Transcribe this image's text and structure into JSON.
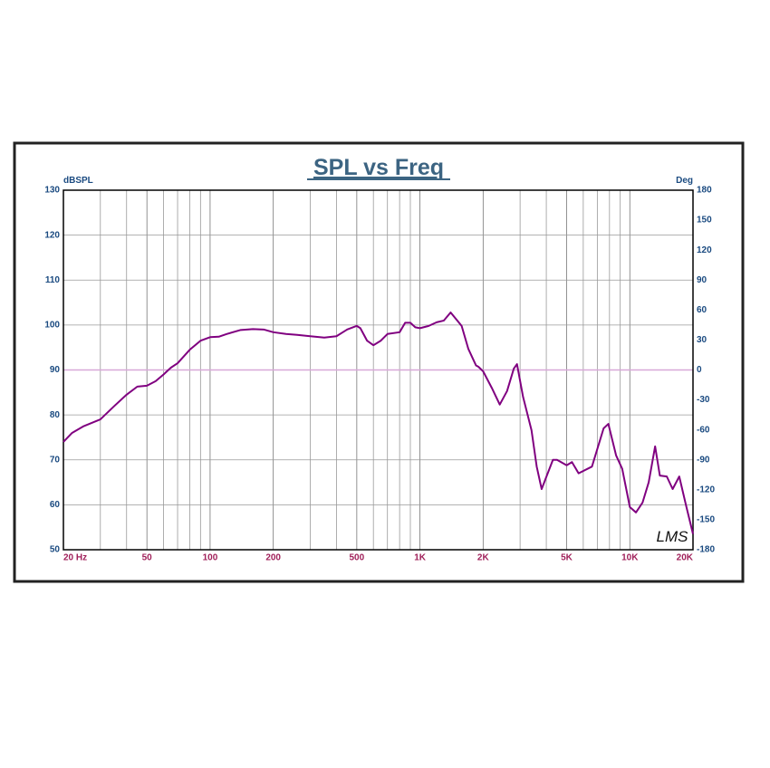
{
  "chart_data": {
    "type": "line",
    "title": "SPL vs Freq",
    "y_axis_label": "dBSPL",
    "y2_axis_label": "Deg",
    "annotation": "LMS",
    "x_scale": "log",
    "xlim": [
      20,
      20000
    ],
    "xticks": [
      {
        "value": 20,
        "label": "20  Hz"
      },
      50,
      100,
      200,
      500,
      {
        "value": 1000,
        "label": "1K"
      },
      {
        "value": 2000,
        "label": "2K"
      },
      {
        "value": 5000,
        "label": "5K"
      },
      {
        "value": 10000,
        "label": "10K"
      },
      {
        "value": 20000,
        "label": "20K"
      }
    ],
    "x_minor_grid": [
      30,
      40,
      60,
      70,
      80,
      90,
      300,
      400,
      600,
      700,
      800,
      900,
      3000,
      4000,
      6000,
      7000,
      8000,
      9000
    ],
    "ylim": [
      50,
      130
    ],
    "yticks": [
      50,
      60,
      70,
      80,
      90,
      100,
      110,
      120,
      130
    ],
    "y2lim": [
      -180,
      180
    ],
    "y2ticks": [
      -180,
      -150,
      -120,
      -90,
      -60,
      -30,
      0,
      30,
      60,
      90,
      120,
      150,
      180
    ],
    "grid": true,
    "reference_line": {
      "axis": "y2",
      "value": 0,
      "color": "#d8a8d8"
    },
    "series": [
      {
        "color": "#800080",
        "x": [
          20,
          22,
          25,
          30,
          35,
          40,
          45,
          50,
          55,
          60,
          65,
          70,
          80,
          90,
          100,
          110,
          120,
          140,
          160,
          180,
          200,
          230,
          260,
          300,
          350,
          400,
          450,
          500,
          520,
          560,
          600,
          650,
          700,
          800,
          850,
          900,
          950,
          1000,
          1100,
          1200,
          1300,
          1400,
          1580,
          1700,
          1850,
          1900,
          2000,
          2200,
          2400,
          2600,
          2800,
          2900,
          3100,
          3400,
          3600,
          3800,
          4300,
          4500,
          5000,
          5300,
          5700,
          6600,
          7500,
          7900,
          8600,
          9200,
          10000,
          10700,
          11500,
          12300,
          13200,
          13900,
          15000,
          16000,
          17200,
          18500,
          20000
        ],
        "values": [
          74,
          76,
          77.5,
          79,
          82,
          84.5,
          86.3,
          86.5,
          87.5,
          89,
          90.5,
          91.5,
          94.5,
          96.5,
          97.3,
          97.4,
          98,
          98.9,
          99.1,
          99,
          98.4,
          98,
          97.8,
          97.5,
          97.2,
          97.5,
          99,
          99.8,
          99.3,
          96.5,
          95.5,
          96.5,
          98,
          98.4,
          100.5,
          100.5,
          99.5,
          99.3,
          99.8,
          100.6,
          101,
          102.8,
          99.8,
          94.7,
          91,
          90.7,
          89.7,
          86,
          82.3,
          85.3,
          90.3,
          91.3,
          84,
          76.6,
          68.5,
          63.5,
          70,
          70,
          68.8,
          69.5,
          67,
          68.5,
          77,
          78,
          71,
          68,
          59.5,
          58.3,
          60.5,
          65,
          73,
          66.5,
          66.3,
          63.5,
          66.3,
          60,
          53.5
        ]
      }
    ]
  }
}
